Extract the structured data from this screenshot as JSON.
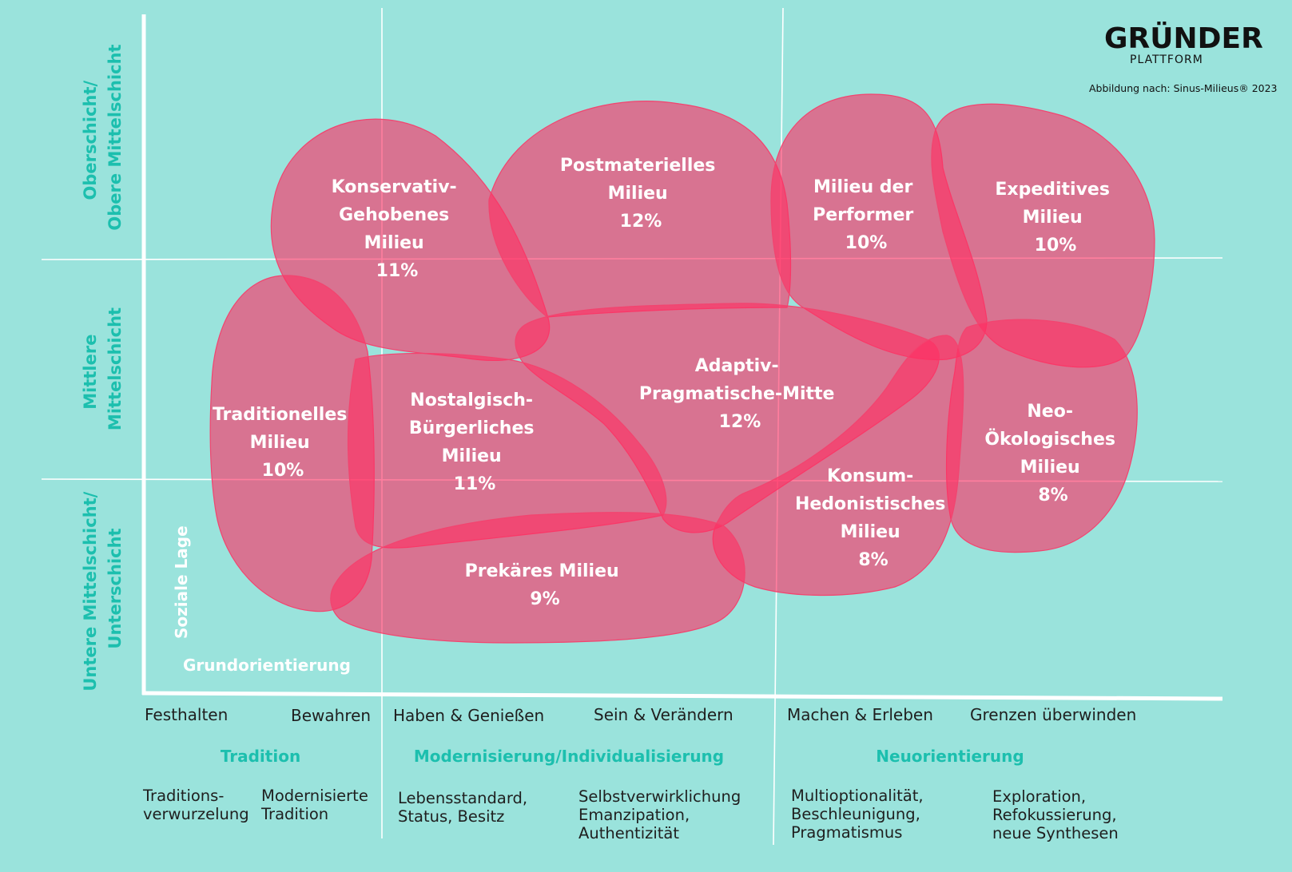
{
  "logo": {
    "main": "GRÜNDER",
    "sub": "PLATTFORM"
  },
  "source": "Abbildung nach: Sinus-Milieus® 2023",
  "colors": {
    "background": "#9ae3dc",
    "milieu": "#ff2e63",
    "accent": "#1cbfae",
    "text": "#1f1f1f"
  },
  "y_axis": {
    "caption": "Soziale Lage",
    "bands": [
      {
        "lines": [
          "Oberschicht/",
          "Obere Mittelschicht"
        ]
      },
      {
        "lines": [
          "Mittlere",
          "Mittelschicht"
        ]
      },
      {
        "lines": [
          "Untere Mittelschicht/",
          "Unterschicht"
        ]
      }
    ]
  },
  "x_axis": {
    "caption": "Grundorientierung",
    "ticks": [
      "Festhalten",
      "Bewahren",
      "Haben & Genießen",
      "Sein & Verändern",
      "Machen & Erleben",
      "Grenzen überwinden"
    ],
    "groups": [
      "Tradition",
      "Modernisierung/Individualisierung",
      "Neuorientierung"
    ],
    "descriptions": [
      {
        "lines": [
          "Traditions-",
          "verwurzelung"
        ]
      },
      {
        "lines": [
          "Modernisierte",
          "Tradition"
        ]
      },
      {
        "lines": [
          "Lebensstandard,",
          "Status, Besitz"
        ]
      },
      {
        "lines": [
          "Selbstverwirklichung",
          "Emanzipation,",
          "Authentizität"
        ]
      },
      {
        "lines": [
          "Multioptionalität,",
          "Beschleunigung,",
          "Pragmatismus"
        ]
      },
      {
        "lines": [
          "Exploration,",
          "Refokussierung,",
          "neue Synthesen"
        ]
      }
    ]
  },
  "milieus": [
    {
      "id": "konservativ-gehobenes",
      "lines": [
        "Konservativ-",
        "Gehobenes",
        "Milieu"
      ],
      "share": "11%",
      "value": 11
    },
    {
      "id": "postmaterielles",
      "lines": [
        "Postmaterielles",
        "Milieu"
      ],
      "share": "12%",
      "value": 12
    },
    {
      "id": "performer",
      "lines": [
        "Milieu der",
        "Performer"
      ],
      "share": "10%",
      "value": 10
    },
    {
      "id": "expeditives",
      "lines": [
        "Expeditives",
        "Milieu"
      ],
      "share": "10%",
      "value": 10
    },
    {
      "id": "adaptiv-pragmatische-mitte",
      "lines": [
        "Adaptiv-",
        "Pragmatische-Mitte"
      ],
      "share": "12%",
      "value": 12
    },
    {
      "id": "traditionelles",
      "lines": [
        "Traditionelles",
        "Milieu"
      ],
      "share": "10%",
      "value": 10
    },
    {
      "id": "nostalgisch-buergerliches",
      "lines": [
        "Nostalgisch-",
        "Bürgerliches",
        "Milieu"
      ],
      "share": "11%",
      "value": 11
    },
    {
      "id": "neo-oekologisches",
      "lines": [
        "Neo-",
        "Ökologisches",
        "Milieu"
      ],
      "share": "8%",
      "value": 8
    },
    {
      "id": "konsum-hedonistisches",
      "lines": [
        "Konsum-",
        "Hedonistisches",
        "Milieu"
      ],
      "share": "8%",
      "value": 8
    },
    {
      "id": "prekaeres",
      "lines": [
        "Prekäres Milieu"
      ],
      "share": "9%",
      "value": 9
    }
  ]
}
